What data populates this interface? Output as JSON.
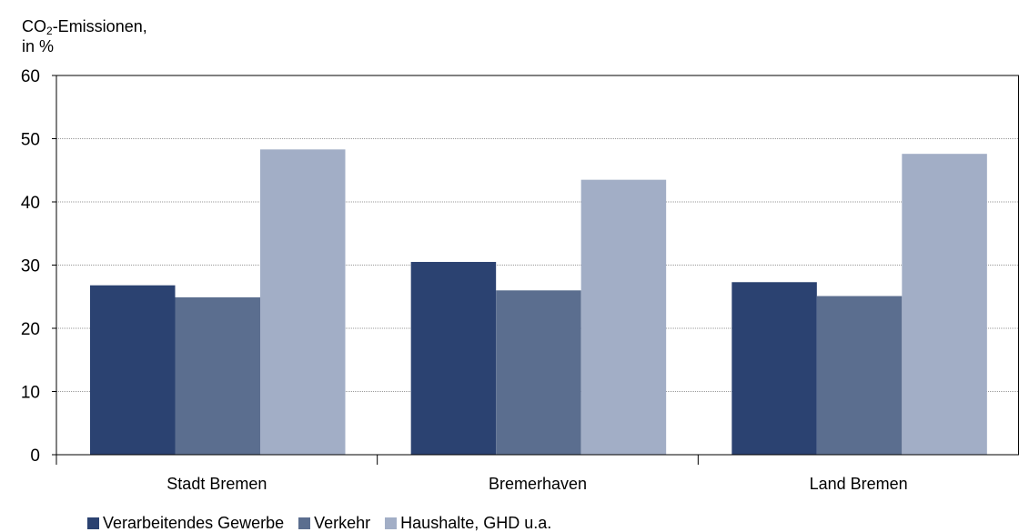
{
  "chart_data": {
    "type": "bar",
    "ylabel_line1_pre": "CO",
    "ylabel_line1_sub": "2",
    "ylabel_line1_post": "-Emissionen,",
    "ylabel_line2": "in %",
    "ylim": [
      0,
      60
    ],
    "yticks": [
      "0",
      "10",
      "20",
      "30",
      "40",
      "50",
      "60"
    ],
    "grid": true,
    "legend_position": "bottom-left",
    "categories": [
      "Stadt Bremen",
      "Bremerhaven",
      "Land Bremen"
    ],
    "series": [
      {
        "name": "Verarbeitendes Gewerbe",
        "color": "#2b4271",
        "values": [
          26.8,
          30.5,
          27.3
        ]
      },
      {
        "name": "Verkehr",
        "color": "#5b6e8f",
        "values": [
          24.9,
          26.0,
          25.1
        ]
      },
      {
        "name": "Haushalte, GHD u.a.",
        "color": "#a2aec6",
        "values": [
          48.3,
          43.5,
          47.6
        ]
      }
    ]
  }
}
